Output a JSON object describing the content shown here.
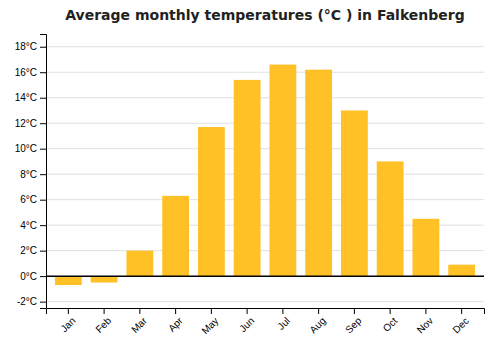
{
  "chart_data": {
    "type": "bar",
    "title": "Average monthly temperatures (°C ) in Falkenberg",
    "categories": [
      "Jan",
      "Feb",
      "Mar",
      "Apr",
      "May",
      "Jun",
      "Jul",
      "Aug",
      "Sep",
      "Oct",
      "Nov",
      "Dec"
    ],
    "values": [
      -0.7,
      -0.5,
      2.0,
      6.3,
      11.7,
      15.4,
      16.6,
      16.2,
      13.0,
      9.0,
      4.5,
      0.9
    ],
    "color": "#FFC125",
    "ylim": [
      -2.5,
      19.0
    ],
    "yticks": [
      {
        "value": -2,
        "label": "-2°C"
      },
      {
        "value": 0,
        "label": "0°C"
      },
      {
        "value": 2,
        "label": "2°C"
      },
      {
        "value": 4,
        "label": "4°C"
      },
      {
        "value": 6,
        "label": "6°C"
      },
      {
        "value": 8,
        "label": "8°C"
      },
      {
        "value": 10,
        "label": "10°C"
      },
      {
        "value": 12,
        "label": "12°C"
      },
      {
        "value": 14,
        "label": "14°C"
      },
      {
        "value": 16,
        "label": "16°C"
      },
      {
        "value": 18,
        "label": "18°C"
      }
    ],
    "grid": true
  }
}
